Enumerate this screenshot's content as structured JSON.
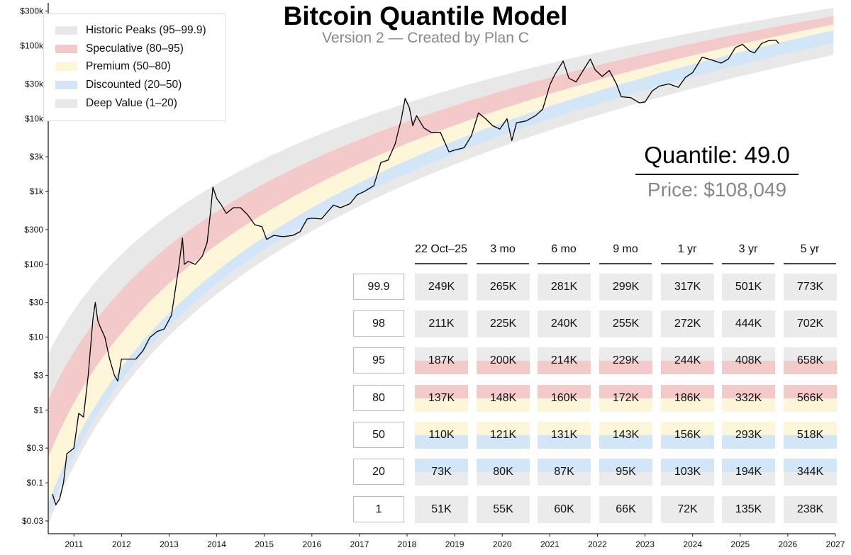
{
  "chart_data": {
    "type": "line",
    "title": "Bitcoin Quantile Model",
    "subtitle": "Version 2 — Created by Plan C",
    "xlabel": "",
    "ylabel": "",
    "yscale": "log",
    "xlim": [
      2010.46,
      2027
    ],
    "ylim": [
      0.02,
      390000
    ],
    "x_ticks": [
      "2011",
      "2012",
      "2013",
      "2014",
      "2015",
      "2016",
      "2017",
      "2018",
      "2019",
      "2020",
      "2021",
      "2022",
      "2023",
      "2024",
      "2025",
      "2026",
      "2027"
    ],
    "y_ticks": [
      {
        "label": "$300k",
        "value": 300000
      },
      {
        "label": "$100k",
        "value": 100000
      },
      {
        "label": "$30k",
        "value": 30000
      },
      {
        "label": "$10k",
        "value": 10000
      },
      {
        "label": "$3k",
        "value": 3000
      },
      {
        "label": "$1k",
        "value": 1000
      },
      {
        "label": "$300",
        "value": 300
      },
      {
        "label": "$100",
        "value": 100
      },
      {
        "label": "$30",
        "value": 30
      },
      {
        "label": "$10",
        "value": 10
      },
      {
        "label": "$3",
        "value": 3
      },
      {
        "label": "$1",
        "value": 1
      },
      {
        "label": "$0.3",
        "value": 0.3
      },
      {
        "label": "$0.1",
        "value": 0.1
      },
      {
        "label": "$0.03",
        "value": 0.03
      }
    ],
    "legend": [
      {
        "label": "Historic Peaks (95–99.9)",
        "color": "#e8e8e8",
        "lo": 95,
        "hi": 99.9
      },
      {
        "label": "Speculative (80–95)",
        "color": "#f3c9c9",
        "lo": 80,
        "hi": 95
      },
      {
        "label": "Premium (50–80)",
        "color": "#fdf6d8",
        "lo": 50,
        "hi": 80
      },
      {
        "label": "Discounted (20–50)",
        "color": "#d3e6f8",
        "lo": 20,
        "hi": 50
      },
      {
        "label": "Deep Value (1–20)",
        "color": "#e8e8e8",
        "lo": 1,
        "hi": 20
      }
    ],
    "legend_position": "top-left",
    "price_series": {
      "name": "BTC price",
      "color": "#000000",
      "x": [
        2010.55,
        2010.62,
        2010.7,
        2010.78,
        2010.85,
        2011.0,
        2011.1,
        2011.2,
        2011.3,
        2011.4,
        2011.45,
        2011.5,
        2011.55,
        2011.65,
        2011.75,
        2011.85,
        2011.92,
        2012.0,
        2012.15,
        2012.3,
        2012.45,
        2012.6,
        2012.75,
        2012.9,
        2013.05,
        2013.2,
        2013.28,
        2013.32,
        2013.4,
        2013.55,
        2013.7,
        2013.8,
        2013.88,
        2013.92,
        2014.0,
        2014.1,
        2014.2,
        2014.35,
        2014.5,
        2014.65,
        2014.8,
        2014.95,
        2015.05,
        2015.2,
        2015.4,
        2015.6,
        2015.75,
        2015.9,
        2016.0,
        2016.2,
        2016.45,
        2016.6,
        2016.8,
        2016.95,
        2017.1,
        2017.3,
        2017.45,
        2017.6,
        2017.75,
        2017.88,
        2017.96,
        2018.05,
        2018.12,
        2018.2,
        2018.35,
        2018.5,
        2018.7,
        2018.88,
        2019.0,
        2019.2,
        2019.35,
        2019.5,
        2019.65,
        2019.8,
        2019.95,
        2020.1,
        2020.2,
        2020.3,
        2020.5,
        2020.7,
        2020.85,
        2021.0,
        2021.1,
        2021.28,
        2021.4,
        2021.55,
        2021.7,
        2021.85,
        2021.95,
        2022.1,
        2022.25,
        2022.4,
        2022.5,
        2022.7,
        2022.88,
        2023.0,
        2023.15,
        2023.3,
        2023.5,
        2023.7,
        2023.85,
        2024.0,
        2024.2,
        2024.4,
        2024.6,
        2024.75,
        2024.9,
        2025.05,
        2025.2,
        2025.3,
        2025.45,
        2025.6,
        2025.75,
        2025.81
      ],
      "y": [
        0.07,
        0.05,
        0.06,
        0.1,
        0.25,
        0.3,
        0.9,
        0.8,
        3,
        18,
        30,
        17,
        14,
        10,
        5,
        3,
        2.5,
        5,
        5,
        5,
        6.5,
        10,
        12,
        13,
        20,
        90,
        230,
        100,
        110,
        100,
        130,
        200,
        600,
        1150,
        800,
        650,
        500,
        600,
        600,
        480,
        350,
        330,
        220,
        250,
        240,
        250,
        280,
        420,
        430,
        420,
        650,
        600,
        680,
        900,
        1000,
        1200,
        2500,
        2700,
        4500,
        10000,
        19000,
        14000,
        8000,
        11000,
        7500,
        6500,
        6500,
        3500,
        3700,
        4000,
        5800,
        12000,
        10000,
        8000,
        7200,
        10000,
        5000,
        8800,
        9300,
        11000,
        13500,
        29000,
        40000,
        62000,
        36000,
        32000,
        46000,
        66000,
        47000,
        38000,
        46000,
        30000,
        20000,
        19500,
        16500,
        17000,
        24000,
        28000,
        30000,
        27000,
        37000,
        43000,
        70000,
        64000,
        58000,
        66000,
        95000,
        105000,
        85000,
        80000,
        108000,
        118000,
        120000,
        108049
      ]
    }
  },
  "readout": {
    "quantile": "Quantile: 49.0",
    "price": "Price: $108,049"
  },
  "table": {
    "headers": [
      "22 Oct–25",
      "3 mo",
      "6 mo",
      "9 mo",
      "1 yr",
      "3 yr",
      "5 yr"
    ],
    "rows": [
      {
        "quantile": "99.9",
        "values": [
          "249K",
          "265K",
          "281K",
          "299K",
          "317K",
          "501K",
          "773K"
        ]
      },
      {
        "quantile": "98",
        "values": [
          "211K",
          "225K",
          "240K",
          "255K",
          "272K",
          "444K",
          "702K"
        ]
      },
      {
        "quantile": "95",
        "values": [
          "187K",
          "200K",
          "214K",
          "229K",
          "244K",
          "408K",
          "658K"
        ]
      },
      {
        "quantile": "80",
        "values": [
          "137K",
          "148K",
          "160K",
          "172K",
          "186K",
          "332K",
          "566K"
        ]
      },
      {
        "quantile": "50",
        "values": [
          "110K",
          "121K",
          "131K",
          "143K",
          "156K",
          "293K",
          "518K"
        ]
      },
      {
        "quantile": "20",
        "values": [
          "73K",
          "80K",
          "87K",
          "95K",
          "103K",
          "194K",
          "344K"
        ]
      },
      {
        "quantile": "1",
        "values": [
          "51K",
          "55K",
          "60K",
          "66K",
          "72K",
          "135K",
          "238K"
        ]
      }
    ]
  }
}
